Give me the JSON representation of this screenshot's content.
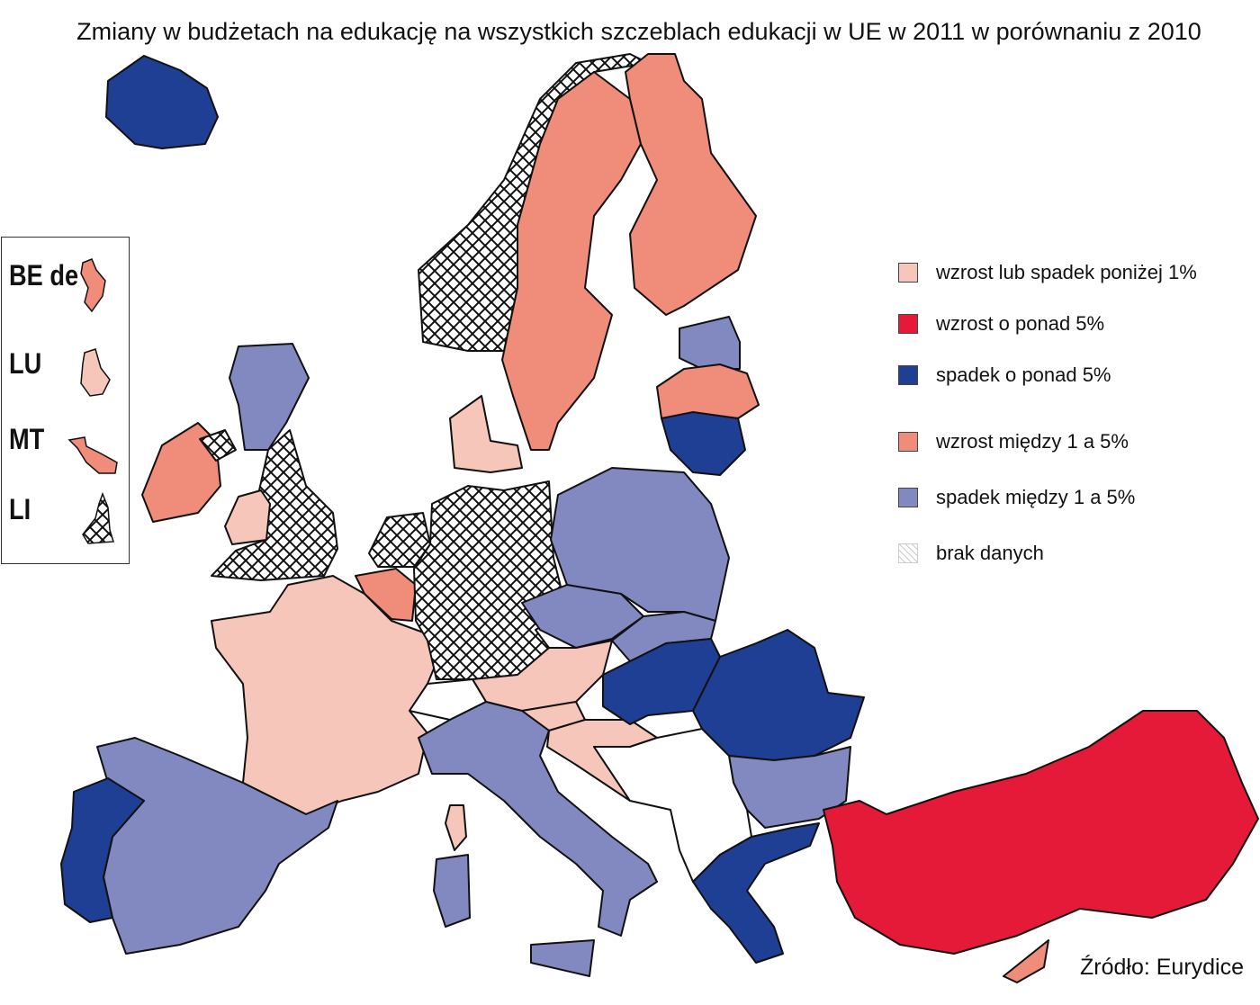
{
  "title": "Zmiany w budżetach na edukację na wszystkich szczeblach edukacji w UE w 2011 w porównaniu z 2010",
  "colors": {
    "small_change": "#f7c6bb",
    "increase_over5": "#e41a38",
    "decrease_over5": "#1f3f94",
    "increase_1_5": "#ef8c7a",
    "decrease_1_5": "#8189c0",
    "no_data": "#ffffff",
    "non_eu": "#ffffff"
  },
  "legend": [
    {
      "key": "small_change",
      "label": "wzrost lub spadek poniżej 1%"
    },
    {
      "key": "increase_over5",
      "label": "wzrost o ponad 5%"
    },
    {
      "key": "decrease_over5",
      "label": "spadek o ponad 5%"
    },
    {
      "key": "increase_1_5",
      "label": "wzrost między 1 a 5%"
    },
    {
      "key": "decrease_1_5",
      "label": "spadek między 1 a 5%"
    },
    {
      "key": "no_data",
      "label": "brak danych"
    }
  ],
  "inset": {
    "labels": [
      "BE de",
      "LU",
      "MT",
      "LI"
    ],
    "categories": [
      "increase_1_5",
      "small_change",
      "increase_1_5",
      "no_data"
    ]
  },
  "regions": {
    "IS": "decrease_over5",
    "NO": "no_data",
    "SE": "increase_1_5",
    "FI": "increase_1_5",
    "EE": "decrease_1_5",
    "LV": "increase_1_5",
    "LT": "decrease_over5",
    "DK": "small_change",
    "IE": "increase_1_5",
    "UK-SCT": "decrease_1_5",
    "UK-ENG": "no_data",
    "UK-WLS": "small_change",
    "UK-NIR": "no_data",
    "NL": "no_data",
    "BE": "increase_1_5",
    "FR": "small_change",
    "DE": "no_data",
    "PL": "decrease_1_5",
    "CZ": "decrease_1_5",
    "SK": "decrease_1_5",
    "AT": "small_change",
    "SI": "small_change",
    "HR": "small_change",
    "HU": "decrease_over5",
    "RO": "decrease_over5",
    "BG": "decrease_1_5",
    "GR": "decrease_over5",
    "TR": "increase_over5",
    "CY": "increase_1_5",
    "IT": "decrease_1_5",
    "ES": "decrease_1_5",
    "PT": "decrease_over5",
    "CH": "non_eu",
    "BALKANS": "non_eu",
    "CORSICA": "small_change"
  },
  "source": "Źródło: Eurydice"
}
